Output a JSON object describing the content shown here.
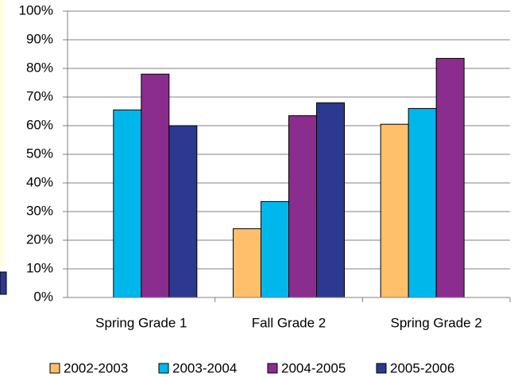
{
  "chart_data": {
    "type": "bar",
    "categories": [
      "Spring Grade 1",
      "Fall Grade 2",
      "Spring Grade 2"
    ],
    "series": [
      {
        "name": "2002-2003",
        "color": "#FFBF6B",
        "values": [
          null,
          24,
          60.5
        ]
      },
      {
        "name": "2003-2004",
        "color": "#00B7EB",
        "values": [
          65.5,
          33.5,
          66
        ]
      },
      {
        "name": "2004-2005",
        "color": "#8B2C8F",
        "values": [
          78,
          63.5,
          83.5
        ]
      },
      {
        "name": "2005-2006",
        "color": "#2B3990",
        "values": [
          60,
          68,
          null
        ]
      }
    ],
    "ylim": [
      0,
      100
    ],
    "yticks": [
      {
        "value": 0,
        "label": "0%"
      },
      {
        "value": 10,
        "label": "10%"
      },
      {
        "value": 20,
        "label": "20%"
      },
      {
        "value": 30,
        "label": "30%"
      },
      {
        "value": 40,
        "label": "40%"
      },
      {
        "value": 50,
        "label": "50%"
      },
      {
        "value": 60,
        "label": "60%"
      },
      {
        "value": 70,
        "label": "70%"
      },
      {
        "value": 80,
        "label": "80%"
      },
      {
        "value": 90,
        "label": "90%"
      },
      {
        "value": 100,
        "label": "100%"
      }
    ],
    "grid": true,
    "legend": "bottom"
  }
}
